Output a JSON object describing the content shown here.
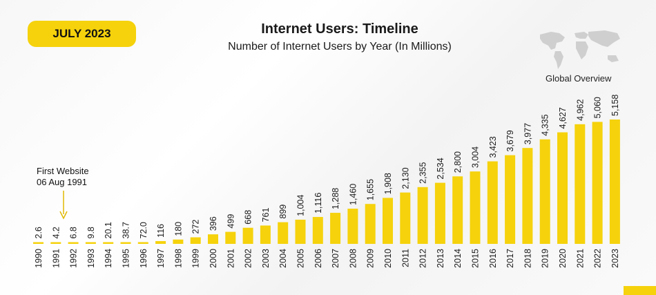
{
  "badge": {
    "label": "JULY 2023"
  },
  "chart_data": {
    "type": "bar",
    "title": "Internet Users: Timeline",
    "subtitle": "Number of Internet Users by Year (In Millions)",
    "xlabel": "",
    "ylabel": "",
    "ylim": [
      0,
      5158
    ],
    "grid": false,
    "categories": [
      "1990",
      "1991",
      "1992",
      "1993",
      "1994",
      "1995",
      "1996",
      "1997",
      "1998",
      "1999",
      "2000",
      "2001",
      "2002",
      "2003",
      "2004",
      "2005",
      "2006",
      "2007",
      "2008",
      "2009",
      "2010",
      "2011",
      "2012",
      "2013",
      "2014",
      "2015",
      "2016",
      "2017",
      "2018",
      "2019",
      "2020",
      "2021",
      "2022",
      "2023"
    ],
    "values": [
      2.6,
      4.2,
      6.8,
      9.8,
      20.1,
      38.7,
      72.0,
      116,
      180,
      272,
      396,
      499,
      668,
      761,
      899,
      1004,
      1116,
      1288,
      1460,
      1655,
      1908,
      2130,
      2355,
      2534,
      2800,
      3004,
      3423,
      3679,
      3977,
      4335,
      4627,
      4962,
      5060,
      5158
    ],
    "value_labels": [
      "2.6",
      "4.2",
      "6.8",
      "9.8",
      "20.1",
      "38.7",
      "72.0",
      "116",
      "180",
      "272",
      "396",
      "499",
      "668",
      "761",
      "899",
      "1,004",
      "1,116",
      "1,288",
      "1,460",
      "1,655",
      "1,908",
      "2,130",
      "2,355",
      "2,534",
      "2,800",
      "3,004",
      "3,423",
      "3,679",
      "3,977",
      "4,335",
      "4,627",
      "4,962",
      "5,060",
      "5,158"
    ],
    "annotation": {
      "category": "1991",
      "line1": "First Website",
      "line2": "06 Aug 1991"
    },
    "bar_color": "#f5d20c"
  },
  "map": {
    "caption": "Global Overview",
    "icon": "world-map-icon"
  }
}
